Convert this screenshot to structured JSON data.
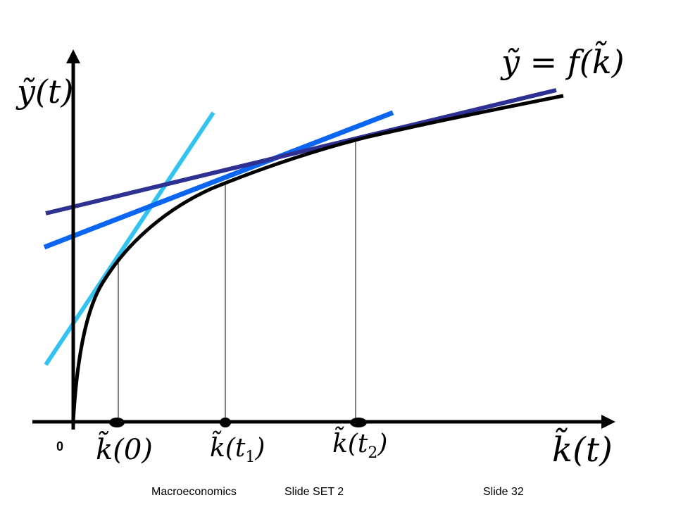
{
  "diagram": {
    "y_axis_label": "ỹ(t)",
    "x_axis_label": "k̃(t)",
    "curve_label": "ỹ = f(k̃)",
    "origin_label": "0",
    "points": [
      {
        "label": "k̃(0)"
      },
      {
        "label": "k̃(t",
        "sub": "1",
        "close": ")"
      },
      {
        "label": "k̃(t",
        "sub": "2",
        "close": ")"
      }
    ],
    "colors": {
      "curve": "#000000",
      "axes": "#000000",
      "tangent_at_k0": "#33C3F0",
      "tangent_at_k1": "#0A66F0",
      "tangent_at_k2": "#2E3192"
    }
  },
  "footer": {
    "course": "Macroeconomics",
    "set": "Slide SET 2",
    "slide": "Slide 32"
  }
}
